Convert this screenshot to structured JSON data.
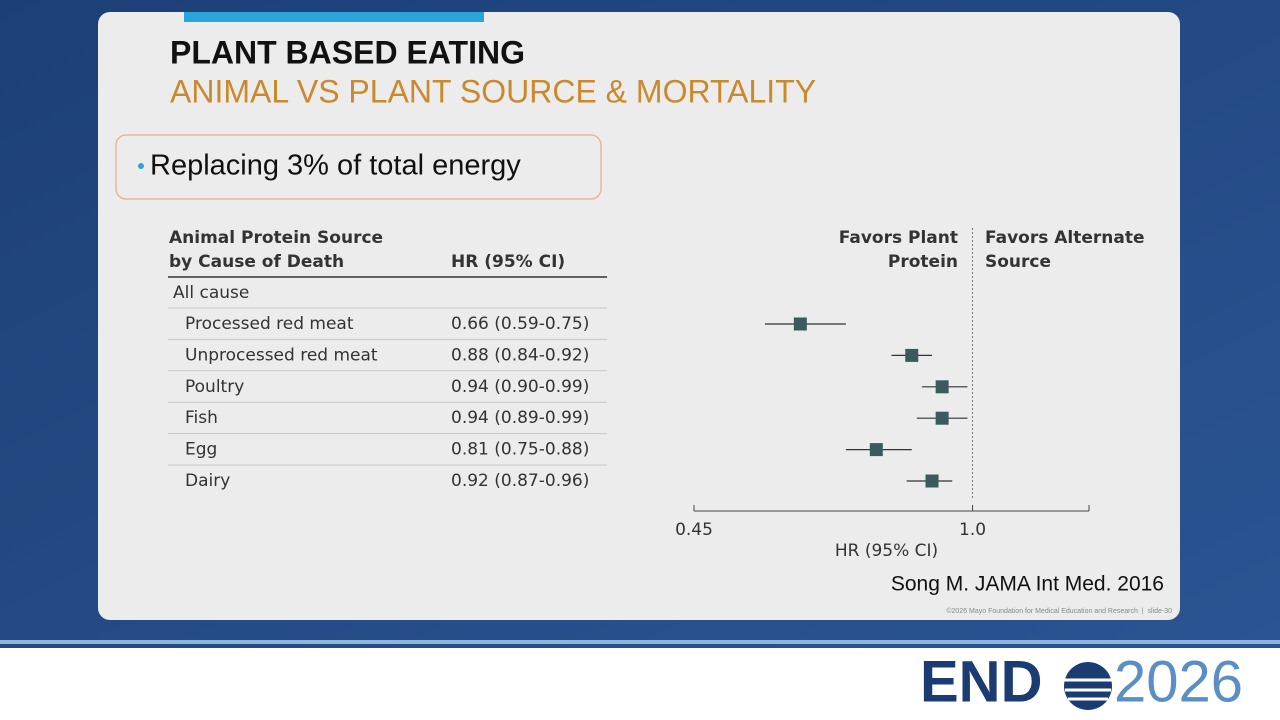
{
  "slide": {
    "title": "PLANT BASED EATING",
    "subtitle": "ANIMAL VS PLANT SOURCE & MORTALITY",
    "bullet": "Replacing 3% of total energy",
    "citation": "Song M. JAMA Int Med. 2016",
    "footer": "©2026 Mayo Foundation for Medical Education and Research  |  slide-30",
    "logo": {
      "text": "END",
      "year": "2026"
    }
  },
  "chart_data": {
    "type": "forest",
    "row_header": [
      "Animal Protein Source",
      "by Cause of Death"
    ],
    "value_header": "HR (95% CI)",
    "group": "All cause",
    "categories": [
      "Processed red meat",
      "Unprocessed red meat",
      "Poultry",
      "Fish",
      "Egg",
      "Dairy"
    ],
    "values": [
      0.66,
      0.88,
      0.94,
      0.94,
      0.81,
      0.92
    ],
    "lower": [
      0.59,
      0.84,
      0.9,
      0.89,
      0.75,
      0.87
    ],
    "upper": [
      0.75,
      0.92,
      0.99,
      0.99,
      0.88,
      0.96
    ],
    "value_labels": [
      "0.66 (0.59-0.75)",
      "0.88 (0.84-0.92)",
      "0.94 (0.90-0.99)",
      "0.94 (0.89-0.99)",
      "0.81 (0.75-0.88)",
      "0.92 (0.87-0.96)"
    ],
    "color": "#3a5a5e",
    "favors_left": [
      "Favors Plant",
      "Protein"
    ],
    "favors_right": [
      "Favors Alternate",
      "Source"
    ],
    "x_label": "HR (95% CI)",
    "xlim": [
      0.45,
      1.23
    ],
    "xticks": [
      0.45,
      {
        "value": 1,
        "label": "1.0"
      }
    ],
    "reference": 1
  }
}
